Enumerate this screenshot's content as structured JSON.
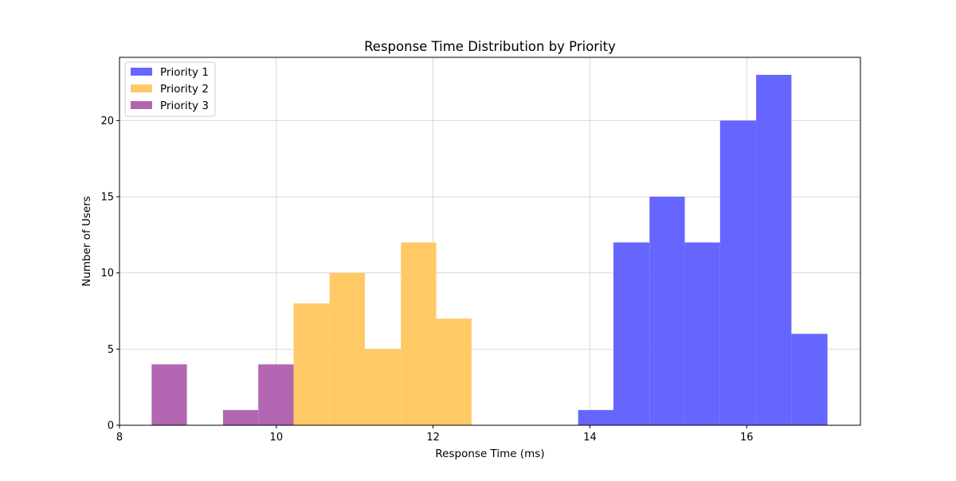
{
  "chart_data": {
    "type": "histogram",
    "title": "Response Time Distribution by Priority",
    "xlabel": "Response Time (ms)",
    "ylabel": "Number of Users",
    "xlim": [
      8,
      17.45
    ],
    "ylim": [
      0,
      24.15
    ],
    "xticks": [
      8,
      10,
      12,
      14,
      16
    ],
    "yticks": [
      0,
      5,
      10,
      15,
      20
    ],
    "grid": true,
    "legend_position": "upper left",
    "series": [
      {
        "name": "Priority 1",
        "color": "#6666ff",
        "bins": [
          {
            "x0": 13.85,
            "x1": 14.3,
            "count": 1
          },
          {
            "x0": 14.3,
            "x1": 14.76,
            "count": 12
          },
          {
            "x0": 14.76,
            "x1": 15.21,
            "count": 15
          },
          {
            "x0": 15.21,
            "x1": 15.66,
            "count": 12
          },
          {
            "x0": 15.66,
            "x1": 16.12,
            "count": 20
          },
          {
            "x0": 16.12,
            "x1": 16.57,
            "count": 23
          },
          {
            "x0": 16.57,
            "x1": 17.03,
            "count": 6
          }
        ]
      },
      {
        "name": "Priority 2",
        "color": "#ffc966",
        "bins": [
          {
            "x0": 10.22,
            "x1": 10.68,
            "count": 8
          },
          {
            "x0": 10.68,
            "x1": 11.13,
            "count": 10
          },
          {
            "x0": 11.13,
            "x1": 11.59,
            "count": 5
          },
          {
            "x0": 11.59,
            "x1": 12.04,
            "count": 12
          },
          {
            "x0": 12.04,
            "x1": 12.49,
            "count": 7
          }
        ]
      },
      {
        "name": "Priority 3",
        "color": "#b266b2",
        "bins": [
          {
            "x0": 8.41,
            "x1": 8.86,
            "count": 4
          },
          {
            "x0": 9.32,
            "x1": 9.77,
            "count": 1
          },
          {
            "x0": 9.77,
            "x1": 10.22,
            "count": 4
          }
        ]
      }
    ]
  }
}
